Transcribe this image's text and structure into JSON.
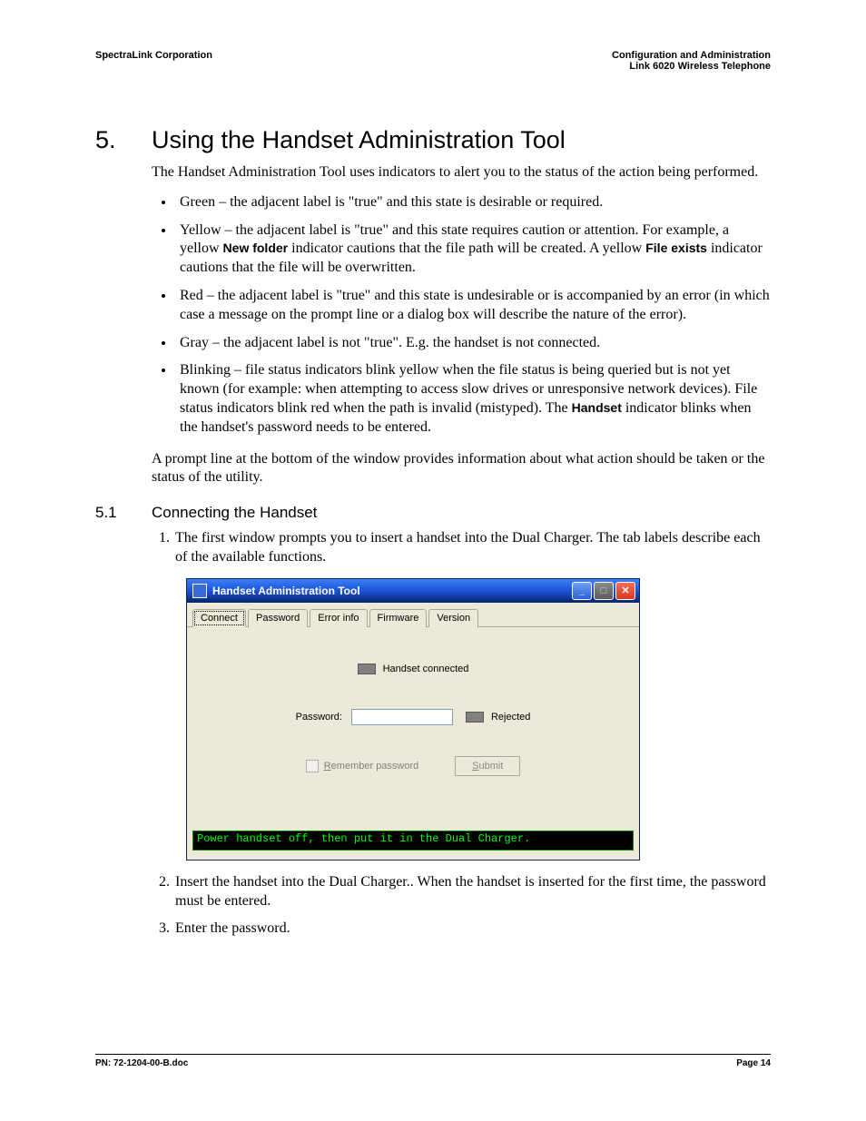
{
  "header": {
    "left": "SpectraLink Corporation",
    "right1": "Configuration and Administration",
    "right2": "Link 6020 Wireless Telephone"
  },
  "h1": {
    "num": "5.",
    "title": "Using the Handset Administration Tool"
  },
  "intro": "The Handset Administration Tool uses indicators to alert you to the status of the action being performed.",
  "bullets": [
    {
      "text": "Green – the adjacent label is \"true\" and this state is desirable or required."
    },
    {
      "pre": "Yellow – the adjacent label is \"true\" and this state requires caution or attention. For example, a yellow ",
      "b1": "New folder",
      "mid": " indicator cautions that the file path will be created. A yellow ",
      "b2": "File exists",
      "post": " indicator cautions that the file will be overwritten."
    },
    {
      "text": "Red – the adjacent label is \"true\" and this state is undesirable or is accompanied by an error (in which case a message on the prompt line or a dialog box will describe the nature of the error)."
    },
    {
      "text": "Gray – the adjacent label is not \"true\". E.g. the handset is not connected."
    },
    {
      "pre": "Blinking – file status indicators blink yellow when the file status is being queried but is not yet known (for example: when attempting to access slow drives or unresponsive network devices). File status indicators blink red when the path is invalid (mistyped). The ",
      "b1": "Handset",
      "post": " indicator blinks when the handset's password needs to be entered."
    }
  ],
  "after": "A prompt line at the bottom of the window provides information about what action should be taken or the status of the utility.",
  "h2": {
    "num": "5.1",
    "title": "Connecting the Handset"
  },
  "steps": [
    "The first window prompts you to insert a handset into the Dual Charger. The tab labels describe each of the available functions.",
    "Insert the handset into the Dual Charger.. When the handset is inserted for the first time, the password must be entered.",
    "Enter the password."
  ],
  "window": {
    "title": "Handset Administration Tool",
    "tabs": [
      "Connect",
      "Password",
      "Error info",
      "Firmware",
      "Version"
    ],
    "connected_label": "Handset connected",
    "password_label": "Password:",
    "rejected_label": "Rejected",
    "remember_pre": "R",
    "remember_post": "emember password",
    "submit_pre": "S",
    "submit_post": "ubmit",
    "prompt": "Power handset off, then put it in the Dual Charger.",
    "colors": {
      "titlebar_start": "#3a80f4",
      "titlebar_end": "#0a246a",
      "panel_bg": "#ece9d8",
      "indicator": "#808080",
      "prompt_bg": "#000000",
      "prompt_fg": "#00ff00",
      "close_btn": "#d83a1c"
    }
  },
  "footer": {
    "left": "PN: 72-1204-00-B.doc",
    "right": "Page 14"
  }
}
